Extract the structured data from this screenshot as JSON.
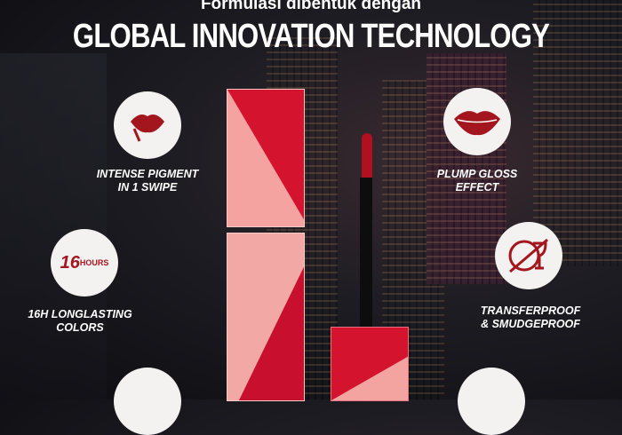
{
  "header": {
    "subtitle": "Formulasi dibentuk dengan",
    "title": "GLOBAL INNOVATION TECHNOLOGY"
  },
  "features": [
    {
      "line1": "INTENSE PIGMENT",
      "line2": "IN 1 SWIPE",
      "icon": "lips-applicator-icon"
    },
    {
      "line1": "PLUMP GLOSS",
      "line2": "EFFECT",
      "icon": "lips-icon"
    },
    {
      "line1": "16H LONGLASTING",
      "line2": "COLORS",
      "icon": "16-hours-icon",
      "icon_text": "16",
      "icon_subtext": "HOURS"
    },
    {
      "line1": "TRANSFERPROOF",
      "line2": "& SMUDGEPROOF",
      "icon": "glass-plate-icon"
    }
  ],
  "colors": {
    "red": "#c8102e",
    "pink": "#f2a0a0",
    "icon_red": "#a3161e"
  }
}
